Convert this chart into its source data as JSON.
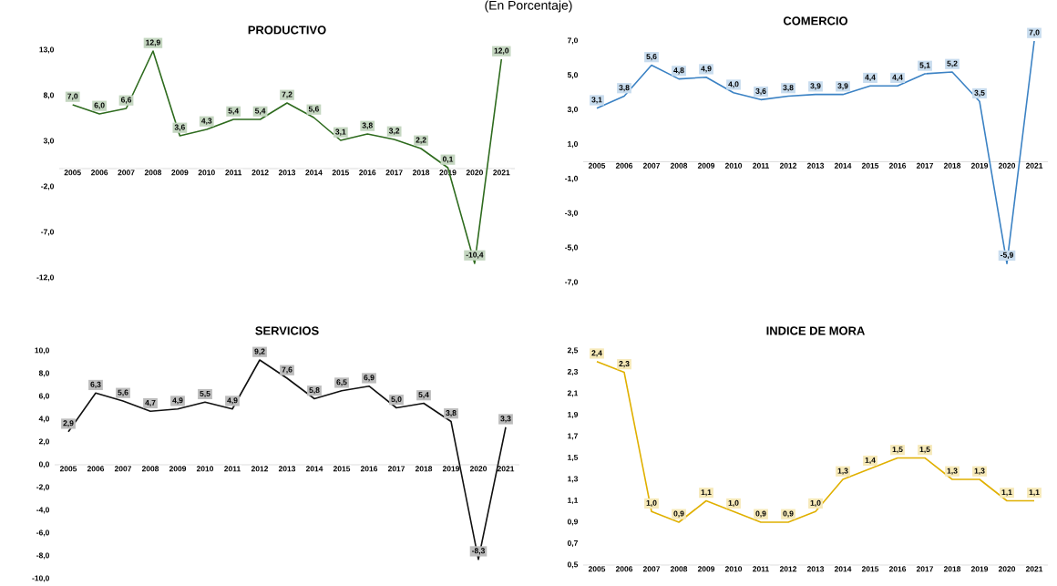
{
  "chart_data": [
    {
      "type": "line",
      "title": "PRODUCTIVO",
      "annotations": [
        "(En Porcentaje)"
      ],
      "categories": [
        "2005",
        "2006",
        "2007",
        "2008",
        "2009",
        "2010",
        "2011",
        "2012",
        "2013",
        "2014",
        "2015",
        "2016",
        "2017",
        "2018",
        "2019",
        "2020",
        "2021"
      ],
      "series": [
        {
          "color": "#2e6b1e",
          "values": [
            7.0,
            6.0,
            6.6,
            12.9,
            3.6,
            4.3,
            5.4,
            5.4,
            7.2,
            5.6,
            3.1,
            3.8,
            3.2,
            2.2,
            0.1,
            -10.4,
            12.0
          ],
          "value_labels": [
            "7,0",
            "6,0",
            "6,6",
            "12,9",
            "3,6",
            "4,3",
            "5,4",
            "5,4",
            "7,2",
            "5,6",
            "3,1",
            "3,8",
            "3,2",
            "2,2",
            "0,1",
            "-10,4",
            "12,0"
          ]
        }
      ],
      "ylim": [
        -12,
        13
      ],
      "yticks": [
        {
          "value": -12,
          "label": "-12,0"
        },
        {
          "value": -7,
          "label": "-7,0"
        },
        {
          "value": -2,
          "label": "-2,0"
        },
        {
          "value": 3,
          "label": "3,0"
        },
        {
          "value": 8,
          "label": "8,0"
        },
        {
          "value": 13,
          "label": "13,0"
        }
      ]
    },
    {
      "type": "line",
      "title": "COMERCIO",
      "categories": [
        "2005",
        "2006",
        "2007",
        "2008",
        "2009",
        "2010",
        "2011",
        "2012",
        "2013",
        "2014",
        "2015",
        "2016",
        "2017",
        "2018",
        "2019",
        "2020",
        "2021"
      ],
      "series": [
        {
          "color": "#3b82c4",
          "values": [
            3.1,
            3.8,
            5.6,
            4.8,
            4.9,
            4.0,
            3.6,
            3.8,
            3.9,
            3.9,
            4.4,
            4.4,
            5.1,
            5.2,
            3.5,
            -5.9,
            7.0
          ],
          "value_labels": [
            "3,1",
            "3,8",
            "5,6",
            "4,8",
            "4,9",
            "4,0",
            "3,6",
            "3,8",
            "3,9",
            "3,9",
            "4,4",
            "4,4",
            "5,1",
            "5,2",
            "3,5",
            "-5,9",
            "7,0"
          ]
        }
      ],
      "ylim": [
        -7,
        7
      ],
      "yticks": [
        {
          "value": -7,
          "label": "-7,0"
        },
        {
          "value": -5,
          "label": "-5,0"
        },
        {
          "value": -3,
          "label": "-3,0"
        },
        {
          "value": -1,
          "label": "-1,0"
        },
        {
          "value": 1,
          "label": "1,0"
        },
        {
          "value": 3,
          "label": "3,0"
        },
        {
          "value": 5,
          "label": "5,0"
        },
        {
          "value": 7,
          "label": "7,0"
        }
      ]
    },
    {
      "type": "line",
      "title": "SERVICIOS",
      "categories": [
        "2005",
        "2006",
        "2007",
        "2008",
        "2009",
        "2010",
        "2011",
        "2012",
        "2013",
        "2014",
        "2015",
        "2016",
        "2017",
        "2018",
        "2019",
        "2020",
        "2021"
      ],
      "series": [
        {
          "color": "#111111",
          "values": [
            2.9,
            6.3,
            5.6,
            4.7,
            4.9,
            5.5,
            4.9,
            9.2,
            7.6,
            5.8,
            6.5,
            6.9,
            5.0,
            5.4,
            3.8,
            -8.3,
            3.3
          ],
          "value_labels": [
            "2,9",
            "6,3",
            "5,6",
            "4,7",
            "4,9",
            "5,5",
            "4,9",
            "9,2",
            "7,6",
            "5,8",
            "6,5",
            "6,9",
            "5,0",
            "5,4",
            "3,8",
            "-8,3",
            "3,3"
          ]
        }
      ],
      "ylim": [
        -10,
        10
      ],
      "yticks": [
        {
          "value": -10,
          "label": "-10,0"
        },
        {
          "value": -8,
          "label": "-8,0"
        },
        {
          "value": -6,
          "label": "-6,0"
        },
        {
          "value": -4,
          "label": "-4,0"
        },
        {
          "value": -2,
          "label": "-2,0"
        },
        {
          "value": 0,
          "label": "0,0"
        },
        {
          "value": 2,
          "label": "2,0"
        },
        {
          "value": 4,
          "label": "4,0"
        },
        {
          "value": 6,
          "label": "6,0"
        },
        {
          "value": 8,
          "label": "8,0"
        },
        {
          "value": 10,
          "label": "10,0"
        }
      ]
    },
    {
      "type": "line",
      "title": "INDICE DE MORA",
      "categories": [
        "2005",
        "2006",
        "2007",
        "2008",
        "2009",
        "2010",
        "2011",
        "2012",
        "2013",
        "2014",
        "2015",
        "2016",
        "2017",
        "2018",
        "2019",
        "2020",
        "2021"
      ],
      "series": [
        {
          "color": "#e0b000",
          "values": [
            2.4,
            2.3,
            1.0,
            0.9,
            1.1,
            1.0,
            0.9,
            0.9,
            1.0,
            1.3,
            1.4,
            1.5,
            1.5,
            1.3,
            1.3,
            1.1,
            1.1
          ],
          "value_labels": [
            "2,4",
            "2,3",
            "1,0",
            "0,9",
            "1,1",
            "1,0",
            "0,9",
            "0,9",
            "1,0",
            "1,3",
            "1,4",
            "1,5",
            "1,5",
            "1,3",
            "1,3",
            "1,1",
            "1,1"
          ]
        }
      ],
      "ylim": [
        0.5,
        2.5
      ],
      "yticks": [
        {
          "value": 0.5,
          "label": "0,5"
        },
        {
          "value": 0.7,
          "label": "0,7"
        },
        {
          "value": 0.9,
          "label": "0,9"
        },
        {
          "value": 1.1,
          "label": "1,1"
        },
        {
          "value": 1.3,
          "label": "1,3"
        },
        {
          "value": 1.5,
          "label": "1,5"
        },
        {
          "value": 1.7,
          "label": "1,7"
        },
        {
          "value": 1.9,
          "label": "1,9"
        },
        {
          "value": 2.1,
          "label": "2,1"
        },
        {
          "value": 2.3,
          "label": "2,3"
        },
        {
          "value": 2.5,
          "label": "2,5"
        }
      ]
    }
  ]
}
